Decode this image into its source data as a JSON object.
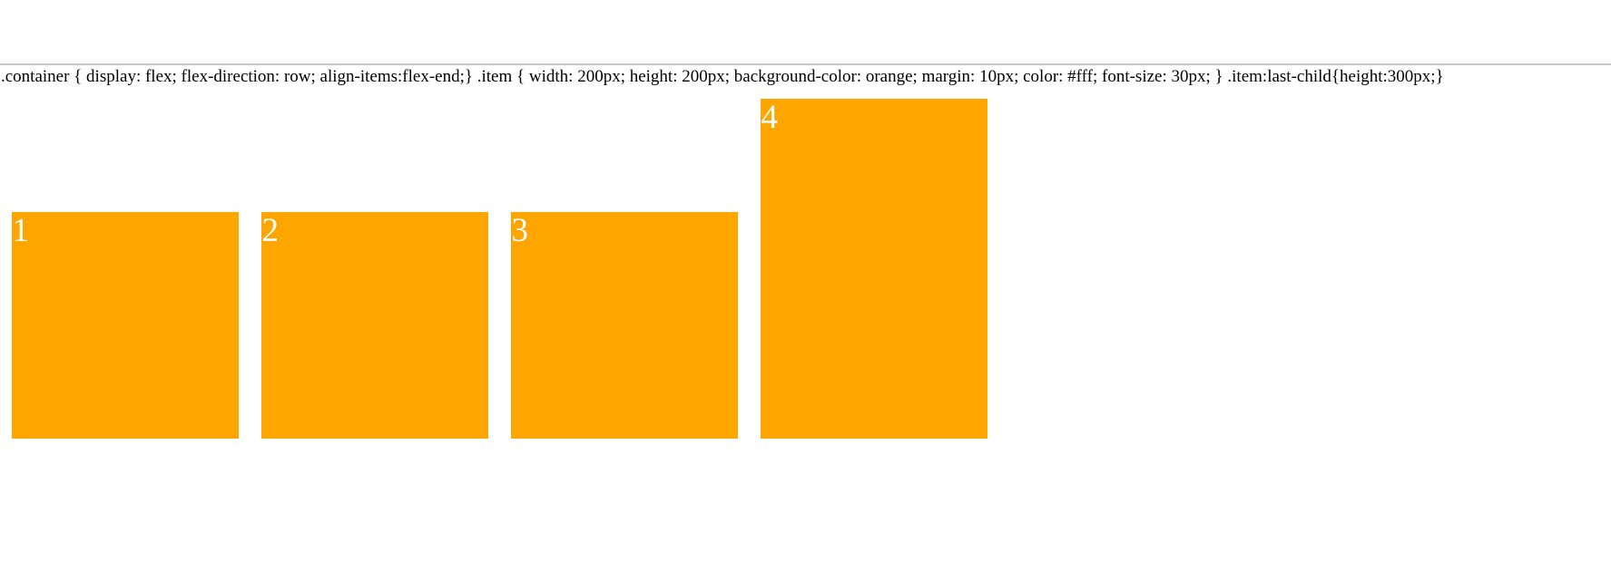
{
  "code_text": ".container { display: flex; flex-direction: row; align-items:flex-end;} .item { width: 200px; height: 200px; background-color: orange; margin: 10px; color: #fff; font-size: 30px; } .item:last-child{height:300px;}",
  "colors": {
    "item_background": "#FFA500",
    "item_text": "#FFFFFF",
    "rule": "#C8C8C8"
  },
  "items": [
    {
      "label": "1"
    },
    {
      "label": "2"
    },
    {
      "label": "3"
    },
    {
      "label": "4"
    }
  ]
}
